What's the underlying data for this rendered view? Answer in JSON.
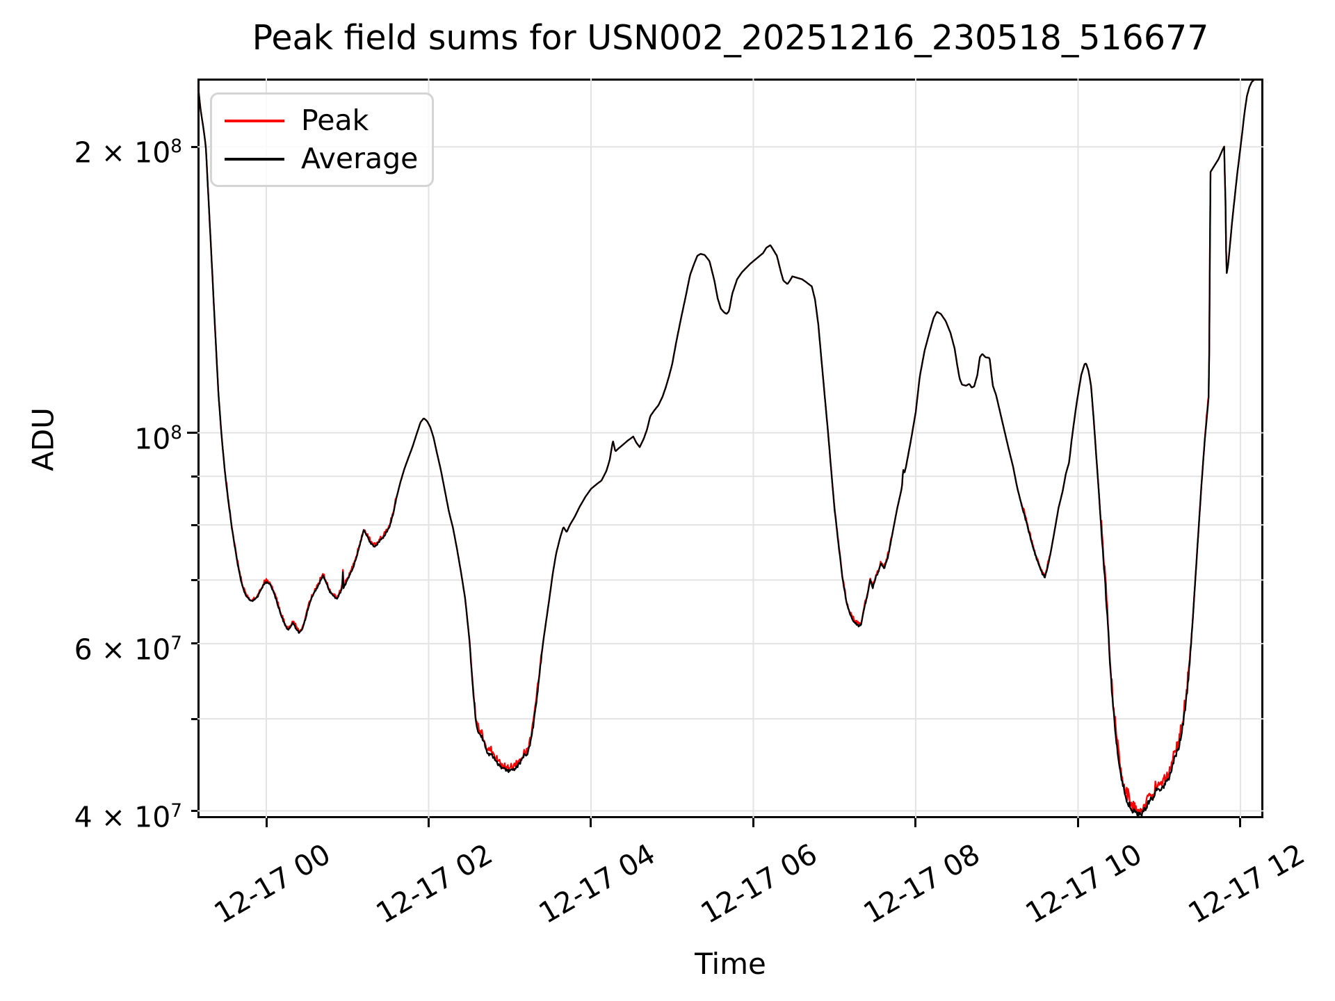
{
  "title": "Peak field sums for USN002_20251216_230518_516677",
  "axes": {
    "x_label": "Time",
    "y_label": "ADU"
  },
  "legend": {
    "entries": [
      {
        "label": "Peak",
        "color": "#ff0000"
      },
      {
        "label": "Average",
        "color": "#000000"
      }
    ]
  },
  "chart_data": {
    "type": "line",
    "title": "Peak field sums for USN002_20251216_230518_516677",
    "xlabel": "Time",
    "ylabel": "ADU",
    "yscale": "log",
    "grid": true,
    "legend_position": "upper left",
    "x_reference": "hours after 2025-12-17 00:00",
    "xlim_hours": [
      -0.848,
      12.283
    ],
    "v_scale_adu": 10000000,
    "ylim": [
      3.93,
      23.6
    ],
    "x_ticks": [
      {
        "t": 0,
        "label": "12-17 00"
      },
      {
        "t": 2,
        "label": "12-17 02"
      },
      {
        "t": 4,
        "label": "12-17 04"
      },
      {
        "t": 6,
        "label": "12-17 06"
      },
      {
        "t": 8,
        "label": "12-17 08"
      },
      {
        "t": 10,
        "label": "12-17 10"
      },
      {
        "t": 12,
        "label": "12-17 12"
      }
    ],
    "y_ticks": [
      {
        "value": 4,
        "base": "4 × 10",
        "exp": "7"
      },
      {
        "value": 5
      },
      {
        "value": 6,
        "base": "6 × 10",
        "exp": "7"
      },
      {
        "value": 7
      },
      {
        "value": 8
      },
      {
        "value": 9
      },
      {
        "value": 10,
        "base": "10",
        "exp": "8",
        "major": true
      },
      {
        "value": 20,
        "base": "2 × 10",
        "exp": "8"
      }
    ],
    "series": [
      {
        "name": "Peak",
        "color": "#ff0000"
      },
      {
        "name": "Average",
        "color": "#000000"
      }
    ],
    "noise_seed": 20251217,
    "noise_regions": [
      [
        -0.5,
        1.6,
        0.006
      ],
      [
        2.5,
        3.4,
        0.012
      ],
      [
        7.0,
        7.7,
        0.006
      ],
      [
        9.3,
        9.65,
        0.007
      ],
      [
        10.28,
        11.4,
        0.02
      ],
      [
        11.56,
        11.63,
        0.008
      ]
    ],
    "base_points": [
      [
        -0.848,
        23.5
      ],
      [
        -0.81,
        21.9
      ],
      [
        -0.77,
        20.8
      ],
      [
        -0.745,
        20.0
      ],
      [
        -0.71,
        17.5
      ],
      [
        -0.67,
        15.0
      ],
      [
        -0.63,
        12.8
      ],
      [
        -0.59,
        11.0
      ],
      [
        -0.55,
        9.9
      ],
      [
        -0.51,
        9.1
      ],
      [
        -0.47,
        8.5
      ],
      [
        -0.43,
        8.0
      ],
      [
        -0.39,
        7.6
      ],
      [
        -0.35,
        7.25
      ],
      [
        -0.31,
        6.98
      ],
      [
        -0.27,
        6.8
      ],
      [
        -0.23,
        6.7
      ],
      [
        -0.19,
        6.65
      ],
      [
        -0.15,
        6.67
      ],
      [
        -0.11,
        6.72
      ],
      [
        -0.07,
        6.82
      ],
      [
        -0.03,
        6.93
      ],
      [
        0.01,
        6.97
      ],
      [
        0.05,
        6.92
      ],
      [
        0.09,
        6.8
      ],
      [
        0.13,
        6.64
      ],
      [
        0.17,
        6.48
      ],
      [
        0.21,
        6.33
      ],
      [
        0.26,
        6.2
      ],
      [
        0.3,
        6.25
      ],
      [
        0.33,
        6.31
      ],
      [
        0.36,
        6.24
      ],
      [
        0.4,
        6.16
      ],
      [
        0.44,
        6.2
      ],
      [
        0.48,
        6.36
      ],
      [
        0.52,
        6.56
      ],
      [
        0.56,
        6.7
      ],
      [
        0.6,
        6.81
      ],
      [
        0.65,
        6.93
      ],
      [
        0.7,
        7.08
      ],
      [
        0.74,
        6.94
      ],
      [
        0.78,
        6.81
      ],
      [
        0.82,
        6.74
      ],
      [
        0.87,
        6.69
      ],
      [
        0.91,
        6.79
      ],
      [
        0.935,
        6.88
      ],
      [
        0.942,
        7.22
      ],
      [
        0.95,
        6.86
      ],
      [
        1.0,
        7.0
      ],
      [
        1.04,
        7.12
      ],
      [
        1.08,
        7.26
      ],
      [
        1.12,
        7.44
      ],
      [
        1.16,
        7.66
      ],
      [
        1.2,
        7.9
      ],
      [
        1.24,
        7.79
      ],
      [
        1.28,
        7.67
      ],
      [
        1.32,
        7.59
      ],
      [
        1.36,
        7.62
      ],
      [
        1.4,
        7.7
      ],
      [
        1.44,
        7.76
      ],
      [
        1.48,
        7.86
      ],
      [
        1.52,
        7.97
      ],
      [
        1.56,
        8.2
      ],
      [
        1.6,
        8.52
      ],
      [
        1.65,
        8.86
      ],
      [
        1.7,
        9.16
      ],
      [
        1.75,
        9.41
      ],
      [
        1.8,
        9.66
      ],
      [
        1.85,
        9.96
      ],
      [
        1.9,
        10.26
      ],
      [
        1.94,
        10.36
      ],
      [
        1.98,
        10.29
      ],
      [
        2.02,
        10.14
      ],
      [
        2.06,
        9.89
      ],
      [
        2.1,
        9.54
      ],
      [
        2.15,
        9.14
      ],
      [
        2.2,
        8.69
      ],
      [
        2.25,
        8.26
      ],
      [
        2.3,
        7.94
      ],
      [
        2.35,
        7.54
      ],
      [
        2.4,
        7.12
      ],
      [
        2.45,
        6.69
      ],
      [
        2.5,
        6.08
      ],
      [
        2.55,
        5.32
      ],
      [
        2.58,
        4.98
      ],
      [
        2.61,
        4.85
      ],
      [
        2.65,
        4.8
      ],
      [
        2.69,
        4.7
      ],
      [
        2.73,
        4.58
      ],
      [
        2.77,
        4.6
      ],
      [
        2.8,
        4.55
      ],
      [
        2.84,
        4.5
      ],
      [
        2.88,
        4.46
      ],
      [
        2.92,
        4.43
      ],
      [
        2.96,
        4.41
      ],
      [
        3.0,
        4.4
      ],
      [
        3.05,
        4.42
      ],
      [
        3.1,
        4.46
      ],
      [
        3.15,
        4.53
      ],
      [
        3.18,
        4.59
      ],
      [
        3.21,
        4.56
      ],
      [
        3.25,
        4.71
      ],
      [
        3.29,
        4.92
      ],
      [
        3.33,
        5.22
      ],
      [
        3.37,
        5.62
      ],
      [
        3.41,
        6.02
      ],
      [
        3.45,
        6.36
      ],
      [
        3.49,
        6.72
      ],
      [
        3.53,
        7.12
      ],
      [
        3.57,
        7.46
      ],
      [
        3.62,
        7.76
      ],
      [
        3.66,
        7.96
      ],
      [
        3.7,
        7.86
      ],
      [
        3.74,
        8.0
      ],
      [
        3.8,
        8.16
      ],
      [
        3.86,
        8.36
      ],
      [
        3.93,
        8.56
      ],
      [
        4.0,
        8.73
      ],
      [
        4.07,
        8.83
      ],
      [
        4.13,
        8.91
      ],
      [
        4.19,
        9.12
      ],
      [
        4.23,
        9.36
      ],
      [
        4.27,
        9.81
      ],
      [
        4.3,
        9.56
      ],
      [
        4.34,
        9.63
      ],
      [
        4.39,
        9.71
      ],
      [
        4.45,
        9.81
      ],
      [
        4.52,
        9.91
      ],
      [
        4.56,
        9.76
      ],
      [
        4.6,
        9.66
      ],
      [
        4.65,
        9.86
      ],
      [
        4.69,
        10.08
      ],
      [
        4.73,
        10.41
      ],
      [
        4.78,
        10.56
      ],
      [
        4.83,
        10.69
      ],
      [
        4.88,
        10.91
      ],
      [
        4.92,
        11.16
      ],
      [
        4.96,
        11.46
      ],
      [
        5.0,
        11.81
      ],
      [
        5.05,
        12.46
      ],
      [
        5.11,
        13.21
      ],
      [
        5.17,
        13.96
      ],
      [
        5.22,
        14.66
      ],
      [
        5.27,
        15.06
      ],
      [
        5.31,
        15.36
      ],
      [
        5.35,
        15.43
      ],
      [
        5.4,
        15.39
      ],
      [
        5.46,
        15.16
      ],
      [
        5.52,
        14.46
      ],
      [
        5.56,
        13.86
      ],
      [
        5.6,
        13.51
      ],
      [
        5.64,
        13.39
      ],
      [
        5.67,
        13.34
      ],
      [
        5.7,
        13.43
      ],
      [
        5.74,
        14.01
      ],
      [
        5.8,
        14.51
      ],
      [
        5.86,
        14.76
      ],
      [
        5.91,
        14.91
      ],
      [
        5.96,
        15.06
      ],
      [
        6.0,
        15.16
      ],
      [
        6.08,
        15.36
      ],
      [
        6.12,
        15.46
      ],
      [
        6.16,
        15.66
      ],
      [
        6.21,
        15.76
      ],
      [
        6.25,
        15.56
      ],
      [
        6.29,
        15.36
      ],
      [
        6.34,
        14.76
      ],
      [
        6.37,
        14.46
      ],
      [
        6.42,
        14.34
      ],
      [
        6.45,
        14.46
      ],
      [
        6.48,
        14.61
      ],
      [
        6.54,
        14.56
      ],
      [
        6.6,
        14.51
      ],
      [
        6.65,
        14.41
      ],
      [
        6.72,
        14.26
      ],
      [
        6.76,
        13.81
      ],
      [
        6.8,
        13.01
      ],
      [
        6.84,
        11.91
      ],
      [
        6.88,
        10.91
      ],
      [
        6.92,
        10.01
      ],
      [
        6.96,
        9.11
      ],
      [
        7.0,
        8.31
      ],
      [
        7.05,
        7.61
      ],
      [
        7.1,
        7.01
      ],
      [
        7.15,
        6.61
      ],
      [
        7.2,
        6.41
      ],
      [
        7.25,
        6.31
      ],
      [
        7.3,
        6.26
      ],
      [
        7.33,
        6.29
      ],
      [
        7.36,
        6.51
      ],
      [
        7.4,
        6.71
      ],
      [
        7.44,
        7.01
      ],
      [
        7.47,
        6.86
      ],
      [
        7.51,
        7.06
      ],
      [
        7.54,
        7.13
      ],
      [
        7.57,
        7.29
      ],
      [
        7.61,
        7.19
      ],
      [
        7.66,
        7.41
      ],
      [
        7.71,
        7.81
      ],
      [
        7.77,
        8.31
      ],
      [
        7.83,
        8.76
      ],
      [
        7.845,
        9.16
      ],
      [
        7.86,
        9.06
      ],
      [
        7.88,
        9.21
      ],
      [
        7.94,
        9.81
      ],
      [
        8.0,
        10.51
      ],
      [
        8.05,
        11.46
      ],
      [
        8.11,
        12.21
      ],
      [
        8.17,
        12.76
      ],
      [
        8.22,
        13.21
      ],
      [
        8.26,
        13.41
      ],
      [
        8.31,
        13.34
      ],
      [
        8.37,
        13.11
      ],
      [
        8.43,
        12.73
      ],
      [
        8.48,
        12.26
      ],
      [
        8.51,
        11.81
      ],
      [
        8.54,
        11.41
      ],
      [
        8.57,
        11.24
      ],
      [
        8.62,
        11.21
      ],
      [
        8.66,
        11.26
      ],
      [
        8.69,
        11.16
      ],
      [
        8.72,
        11.19
      ],
      [
        8.76,
        11.51
      ],
      [
        8.79,
        12.01
      ],
      [
        8.82,
        12.11
      ],
      [
        8.86,
        12.01
      ],
      [
        8.91,
        11.99
      ],
      [
        8.95,
        11.21
      ],
      [
        8.99,
        10.96
      ],
      [
        9.04,
        10.51
      ],
      [
        9.08,
        10.16
      ],
      [
        9.14,
        9.66
      ],
      [
        9.2,
        9.21
      ],
      [
        9.25,
        8.76
      ],
      [
        9.31,
        8.36
      ],
      [
        9.37,
        8.01
      ],
      [
        9.42,
        7.71
      ],
      [
        9.48,
        7.41
      ],
      [
        9.52,
        7.26
      ],
      [
        9.56,
        7.11
      ],
      [
        9.59,
        7.05
      ],
      [
        9.62,
        7.17
      ],
      [
        9.66,
        7.46
      ],
      [
        9.71,
        7.88
      ],
      [
        9.76,
        8.34
      ],
      [
        9.81,
        8.68
      ],
      [
        9.85,
        9.06
      ],
      [
        9.89,
        9.31
      ],
      [
        9.92,
        9.81
      ],
      [
        9.95,
        10.26
      ],
      [
        9.98,
        10.71
      ],
      [
        10.01,
        11.11
      ],
      [
        10.04,
        11.51
      ],
      [
        10.08,
        11.81
      ],
      [
        10.1,
        11.83
      ],
      [
        10.13,
        11.61
      ],
      [
        10.16,
        11.21
      ],
      [
        10.19,
        10.41
      ],
      [
        10.22,
        9.56
      ],
      [
        10.25,
        8.81
      ],
      [
        10.28,
        8.06
      ],
      [
        10.31,
        7.41
      ],
      [
        10.34,
        6.81
      ],
      [
        10.37,
        6.21
      ],
      [
        10.4,
        5.61
      ],
      [
        10.43,
        5.16
      ],
      [
        10.47,
        4.76
      ],
      [
        10.51,
        4.46
      ],
      [
        10.55,
        4.26
      ],
      [
        10.6,
        4.11
      ],
      [
        10.65,
        4.03
      ],
      [
        10.7,
        3.98
      ],
      [
        10.75,
        3.96
      ],
      [
        10.8,
        3.98
      ],
      [
        10.85,
        4.06
      ],
      [
        10.9,
        4.13
      ],
      [
        10.93,
        4.11
      ],
      [
        10.96,
        4.2
      ],
      [
        11.0,
        4.23
      ],
      [
        11.04,
        4.22
      ],
      [
        11.08,
        4.29
      ],
      [
        11.12,
        4.34
      ],
      [
        11.16,
        4.46
      ],
      [
        11.2,
        4.57
      ],
      [
        11.24,
        4.66
      ],
      [
        11.28,
        4.86
      ],
      [
        11.32,
        5.11
      ],
      [
        11.36,
        5.51
      ],
      [
        11.4,
        6.11
      ],
      [
        11.44,
        6.91
      ],
      [
        11.48,
        7.81
      ],
      [
        11.52,
        8.81
      ],
      [
        11.56,
        9.81
      ],
      [
        11.6,
        10.71
      ],
      [
        11.613,
        11.01
      ],
      [
        11.63,
        18.81
      ],
      [
        11.68,
        19.11
      ],
      [
        11.73,
        19.41
      ],
      [
        11.78,
        19.86
      ],
      [
        11.8,
        20.01
      ],
      [
        11.816,
        17.51
      ],
      [
        11.828,
        14.66
      ],
      [
        11.85,
        15.06
      ],
      [
        11.9,
        16.76
      ],
      [
        11.96,
        18.71
      ],
      [
        12.02,
        20.61
      ],
      [
        12.05,
        21.71
      ],
      [
        12.08,
        22.61
      ],
      [
        12.11,
        23.11
      ],
      [
        12.14,
        23.41
      ],
      [
        12.18,
        23.56
      ],
      [
        12.283,
        23.6
      ]
    ]
  }
}
